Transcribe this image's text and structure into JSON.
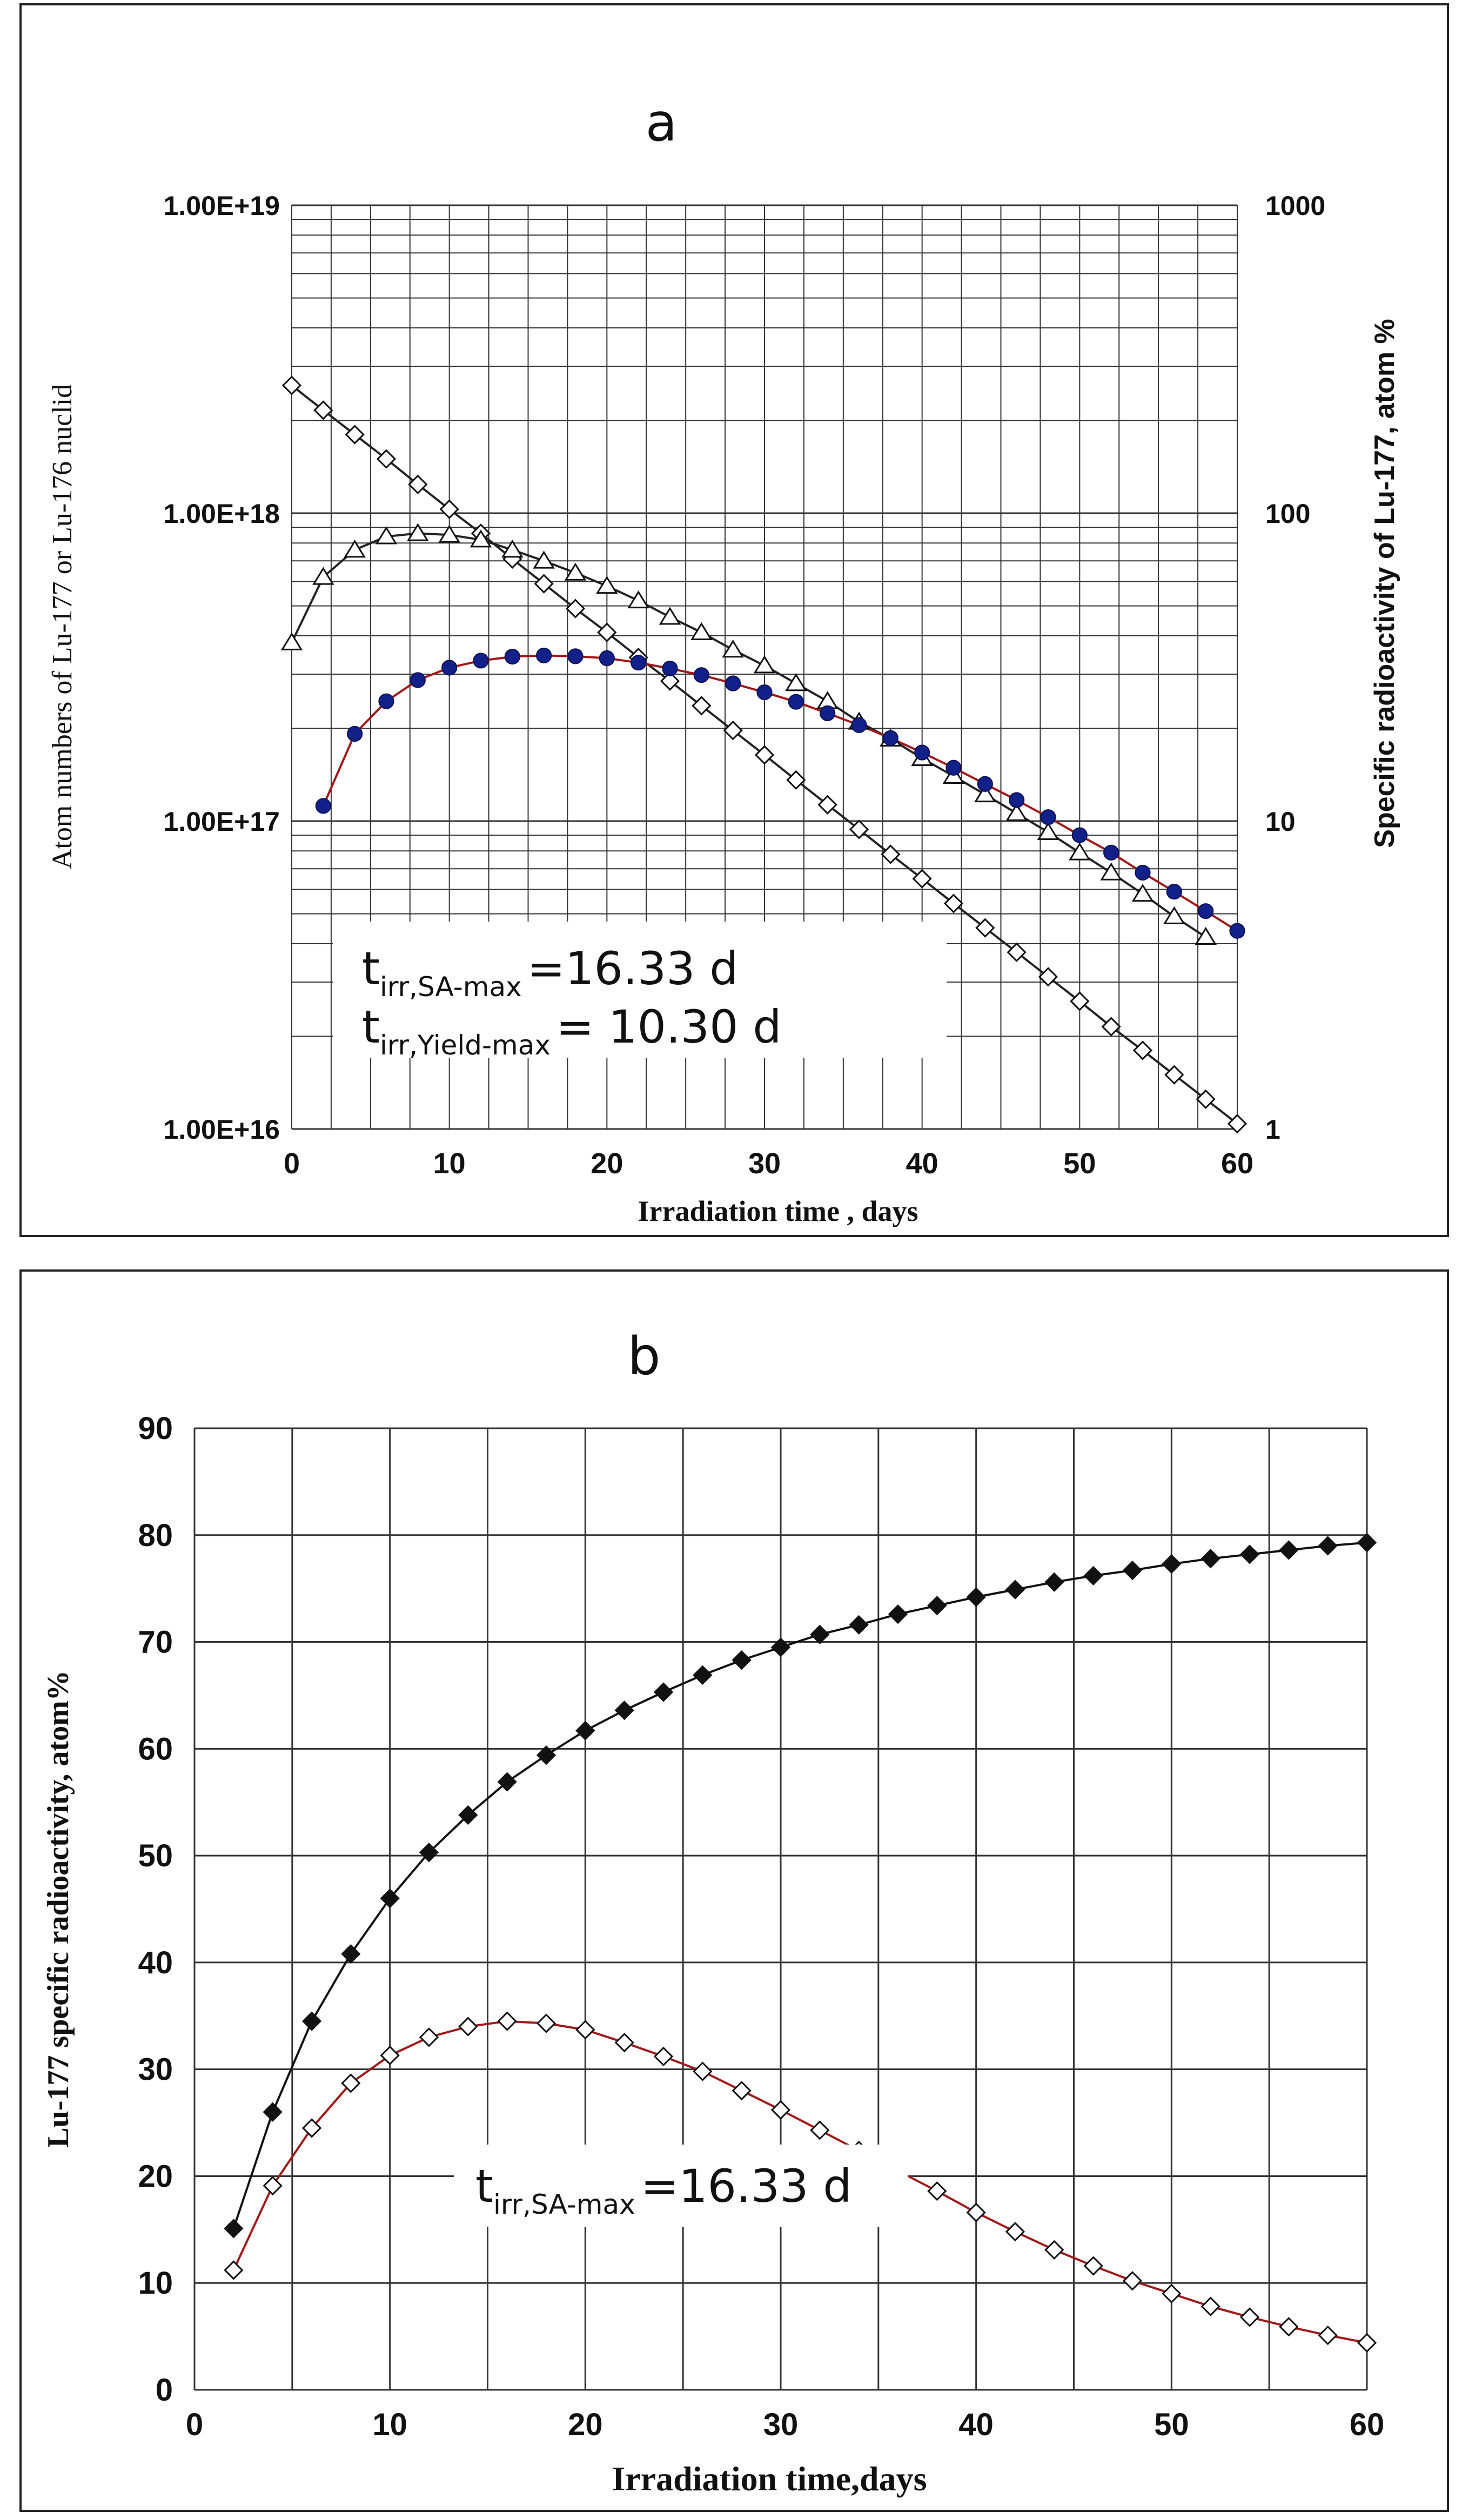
{
  "chart_data": [
    {
      "panel_label": "a",
      "type": "line",
      "title": "a",
      "xlabel": "Irradiation time , days",
      "ylabel": "Atom numbers of Lu-177 or Lu-176 nuclid",
      "y2label": "Specific radioactivity of Lu-177, atom %",
      "xlim": [
        0,
        60
      ],
      "ylim": [
        1e+16,
        1e+19
      ],
      "y2lim": [
        1,
        1000
      ],
      "yscale": "log",
      "x_ticks": [
        "0",
        "10",
        "20",
        "30",
        "40",
        "50",
        "60"
      ],
      "y_ticks": [
        "1.00E+16",
        "1.00E+17",
        "1.00E+18",
        "1.00E+19"
      ],
      "y2_ticks": [
        "1",
        "10",
        "100",
        "1000"
      ],
      "grid": true,
      "annotations": [
        {
          "main": "t",
          "sub": "irr,SA-max",
          "text": "=16.33 d"
        },
        {
          "main": "t",
          "sub": "irr,Yield-max",
          "text": "= 10.30 d"
        }
      ],
      "series": [
        {
          "name": "Lu-176 atoms (open diamonds)",
          "axis": "left",
          "marker": "diamond-open",
          "x": [
            0,
            2,
            4,
            6,
            8,
            10,
            12,
            14,
            16,
            18,
            20,
            22,
            24,
            26,
            28,
            30,
            32,
            34,
            36,
            38,
            40,
            42,
            44,
            46,
            48,
            50,
            52,
            54,
            56,
            58,
            60
          ],
          "values": [
            2.6e+18,
            2.16e+18,
            1.8e+18,
            1.5e+18,
            1.24e+18,
            1.03e+18,
            8.6e+17,
            7.1e+17,
            5.9e+17,
            4.9e+17,
            4.1e+17,
            3.4e+17,
            2.85e+17,
            2.37e+17,
            1.97e+17,
            1.64e+17,
            1.36e+17,
            1.13e+17,
            9.4e+16,
            7.8e+16,
            6.5e+16,
            5.4e+16,
            4.5e+16,
            3.75e+16,
            3.12e+16,
            2.6e+16,
            2.15e+16,
            1.8e+16,
            1.5e+16,
            1.25e+16,
            1.04e+16
          ]
        },
        {
          "name": "Lu-177 atoms (open triangles)",
          "axis": "left",
          "marker": "triangle-open",
          "x": [
            0,
            2,
            4,
            6,
            8,
            10,
            12,
            14,
            16,
            18,
            20,
            22,
            24,
            26,
            28,
            30,
            32,
            34,
            36,
            38,
            40,
            42,
            44,
            46,
            48,
            50,
            52,
            54,
            56,
            58
          ],
          "values": [
            3.8e+17,
            6.2e+17,
            7.6e+17,
            8.4e+17,
            8.6e+17,
            8.5e+17,
            8.2e+17,
            7.6e+17,
            7e+17,
            6.4e+17,
            5.8e+17,
            5.2e+17,
            4.6e+17,
            4.1e+17,
            3.6e+17,
            3.2e+17,
            2.8e+17,
            2.45e+17,
            2.1e+17,
            1.85e+17,
            1.6e+17,
            1.4e+17,
            1.22e+17,
            1.06e+17,
            9.2e+16,
            7.9e+16,
            6.8e+16,
            5.8e+16,
            4.9e+16,
            4.2e+16
          ]
        },
        {
          "name": "Lu-177 specific radioactivity (filled circles)",
          "axis": "right",
          "marker": "circle-filled",
          "x": [
            2,
            4,
            6,
            8,
            10,
            12,
            14,
            16,
            18,
            20,
            22,
            24,
            26,
            28,
            30,
            32,
            34,
            36,
            38,
            40,
            42,
            44,
            46,
            48,
            50,
            52,
            54,
            56,
            58,
            60
          ],
          "values": [
            11.2,
            19.2,
            24.5,
            28.7,
            31.5,
            33.2,
            34.2,
            34.5,
            34.3,
            33.8,
            32.7,
            31.3,
            29.8,
            28.0,
            26.2,
            24.4,
            22.4,
            20.5,
            18.6,
            16.7,
            14.9,
            13.2,
            11.7,
            10.3,
            9.0,
            7.9,
            6.8,
            5.9,
            5.1,
            4.4
          ]
        }
      ]
    },
    {
      "panel_label": "b",
      "type": "line",
      "title": "b",
      "xlabel": "Irradiation time,days",
      "ylabel": "Lu-177 specific radioactivity, atom%",
      "xlim": [
        0,
        60
      ],
      "ylim": [
        0,
        90
      ],
      "x_ticks": [
        "0",
        "10",
        "20",
        "30",
        "40",
        "50",
        "60"
      ],
      "y_ticks": [
        "0",
        "10",
        "20",
        "30",
        "40",
        "50",
        "60",
        "70",
        "80",
        "90"
      ],
      "grid": true,
      "annotations": [
        {
          "main": "t",
          "sub": "irr,SA-max",
          "text": "=16.33 d"
        }
      ],
      "series": [
        {
          "name": "upper curve (filled diamonds)",
          "marker": "diamond-filled",
          "x": [
            2,
            4,
            6,
            8,
            10,
            12,
            14,
            16,
            18,
            20,
            22,
            24,
            26,
            28,
            30,
            32,
            34,
            36,
            38,
            40,
            42,
            44,
            46,
            48,
            50,
            52,
            54,
            56,
            58,
            60
          ],
          "values": [
            15.1,
            26,
            34.5,
            40.8,
            46,
            50.3,
            53.8,
            56.9,
            59.4,
            61.7,
            63.6,
            65.3,
            66.9,
            68.3,
            69.5,
            70.7,
            71.6,
            72.6,
            73.4,
            74.2,
            74.9,
            75.6,
            76.2,
            76.7,
            77.3,
            77.8,
            78.2,
            78.6,
            79,
            79.3
          ]
        },
        {
          "name": "lower curve (open diamonds)",
          "marker": "diamond-open",
          "x": [
            2,
            4,
            6,
            8,
            10,
            12,
            14,
            16,
            18,
            20,
            22,
            24,
            26,
            28,
            30,
            32,
            34,
            36,
            38,
            40,
            42,
            44,
            46,
            48,
            50,
            52,
            54,
            56,
            58,
            60
          ],
          "values": [
            11.2,
            19.1,
            24.5,
            28.7,
            31.3,
            33,
            34,
            34.5,
            34.3,
            33.7,
            32.5,
            31.2,
            29.8,
            28,
            26.2,
            24.3,
            22.4,
            20.5,
            18.6,
            16.6,
            14.8,
            13.1,
            11.6,
            10.2,
            9,
            7.8,
            6.8,
            5.9,
            5.1,
            4.4
          ]
        }
      ]
    }
  ]
}
